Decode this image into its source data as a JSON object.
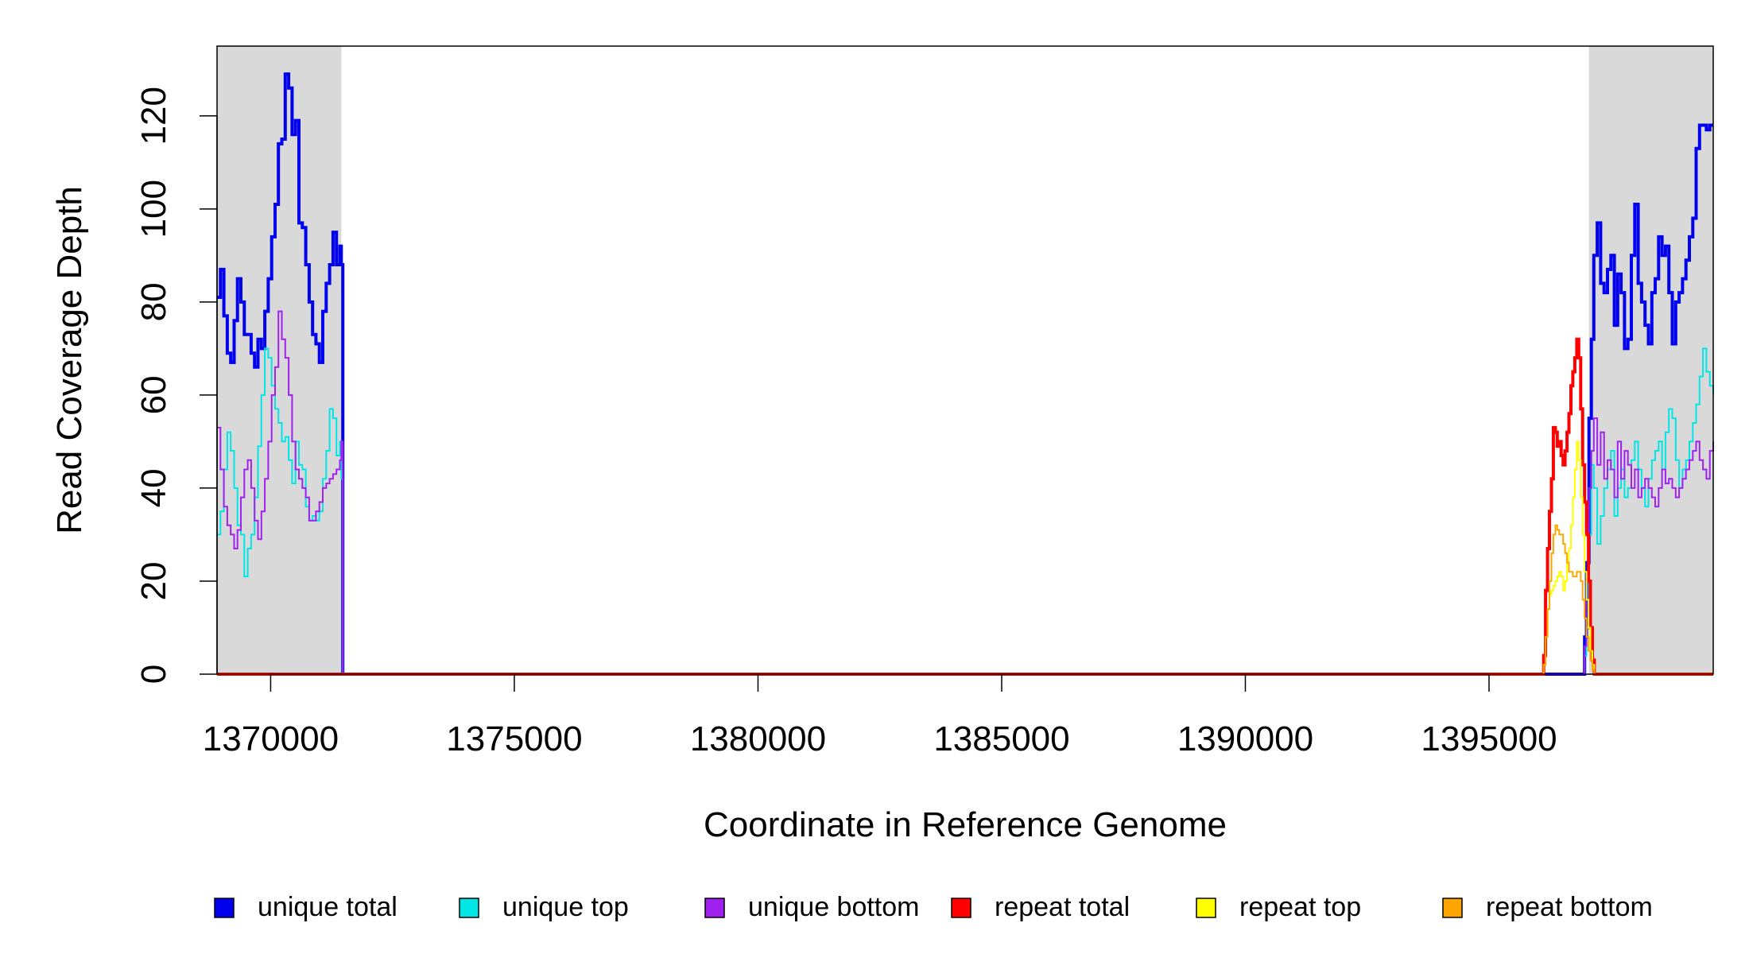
{
  "chart_data": {
    "type": "line",
    "title": "",
    "xlabel": "Coordinate in Reference Genome",
    "ylabel": "Read Coverage Depth",
    "xlim": [
      1368900,
      1399600
    ],
    "ylim": [
      0,
      135
    ],
    "x_ticks": [
      1370000,
      1375000,
      1380000,
      1385000,
      1390000,
      1395000
    ],
    "y_ticks": [
      0,
      20,
      40,
      60,
      80,
      100,
      120
    ],
    "x_tick_labels": [
      "1370000",
      "1375000",
      "1380000",
      "1385000",
      "1390000",
      "1395000"
    ],
    "y_tick_labels": [
      "0",
      "20",
      "40",
      "60",
      "80",
      "100",
      "120"
    ],
    "shaded_regions": [
      {
        "x0": 1368900,
        "x1": 1371450,
        "color": "#d9d9d9"
      },
      {
        "x0": 1397050,
        "x1": 1399600,
        "color": "#d9d9d9"
      }
    ],
    "grid": false,
    "legend_position": "bottom",
    "series": [
      {
        "name": "unique total",
        "color": "#0000ee",
        "width": 4,
        "x": [
          1368900,
          1368970,
          1369040,
          1369110,
          1369180,
          1369250,
          1369320,
          1369390,
          1369460,
          1369530,
          1369600,
          1369670,
          1369740,
          1369810,
          1369880,
          1369950,
          1370020,
          1370090,
          1370160,
          1370230,
          1370300,
          1370370,
          1370440,
          1370510,
          1370580,
          1370650,
          1370720,
          1370790,
          1370860,
          1370930,
          1371000,
          1371070,
          1371140,
          1371210,
          1371280,
          1371350,
          1371420,
          1371450,
          1371480,
          1371500,
          1396900,
          1396960,
          1397000,
          1397050,
          1397100,
          1397150,
          1397220,
          1397290,
          1397360,
          1397430,
          1397500,
          1397570,
          1397640,
          1397710,
          1397780,
          1397850,
          1397920,
          1397990,
          1398060,
          1398130,
          1398200,
          1398270,
          1398340,
          1398410,
          1398480,
          1398550,
          1398620,
          1398690,
          1398760,
          1398830,
          1398900,
          1398970,
          1399040,
          1399110,
          1399180,
          1399250,
          1399320,
          1399390,
          1399460,
          1399530,
          1399600
        ],
        "y": [
          81,
          87,
          77,
          69,
          67,
          76,
          85,
          80,
          73,
          73,
          69,
          66,
          72,
          70,
          78,
          85,
          94,
          101,
          114,
          115,
          129,
          126,
          116,
          119,
          97,
          96,
          88,
          80,
          73,
          71,
          67,
          78,
          84,
          88,
          95,
          88,
          92,
          88,
          0,
          0,
          0,
          8,
          24,
          55,
          72,
          90,
          97,
          84,
          82,
          87,
          90,
          75,
          86,
          82,
          70,
          72,
          90,
          101,
          84,
          80,
          75,
          71,
          82,
          85,
          94,
          90,
          92,
          82,
          71,
          80,
          82,
          85,
          89,
          94,
          98,
          113,
          118,
          118,
          117,
          118,
          118
        ]
      },
      {
        "name": "unique top",
        "color": "#00e5e5",
        "width": 2,
        "x": [
          1368900,
          1368970,
          1369040,
          1369110,
          1369180,
          1369250,
          1369320,
          1369390,
          1369460,
          1369530,
          1369600,
          1369670,
          1369740,
          1369810,
          1369880,
          1369950,
          1370020,
          1370090,
          1370160,
          1370230,
          1370300,
          1370370,
          1370440,
          1370510,
          1370580,
          1370650,
          1370720,
          1370790,
          1370860,
          1370930,
          1371000,
          1371070,
          1371140,
          1371210,
          1371280,
          1371350,
          1371420,
          1371450,
          1371480,
          1371500,
          1396900,
          1396960,
          1397000,
          1397050,
          1397100,
          1397150,
          1397220,
          1397290,
          1397360,
          1397430,
          1397500,
          1397570,
          1397640,
          1397710,
          1397780,
          1397850,
          1397920,
          1397990,
          1398060,
          1398130,
          1398200,
          1398270,
          1398340,
          1398410,
          1398480,
          1398550,
          1398620,
          1398690,
          1398760,
          1398830,
          1398900,
          1398970,
          1399040,
          1399110,
          1399180,
          1399250,
          1399320,
          1399390,
          1399460,
          1399530,
          1399600
        ],
        "y": [
          30,
          35,
          44,
          52,
          48,
          40,
          32,
          30,
          21,
          27,
          30,
          38,
          49,
          60,
          70,
          68,
          62,
          57,
          54,
          50,
          51,
          46,
          41,
          50,
          45,
          44,
          36,
          33,
          34,
          33,
          35,
          42,
          48,
          57,
          55,
          47,
          50,
          42,
          0,
          0,
          0,
          4,
          10,
          30,
          45,
          40,
          28,
          34,
          40,
          44,
          48,
          34,
          40,
          44,
          38,
          40,
          46,
          50,
          44,
          40,
          36,
          42,
          46,
          48,
          50,
          44,
          52,
          57,
          55,
          46,
          40,
          44,
          46,
          50,
          54,
          58,
          64,
          70,
          65,
          62,
          60
        ]
      },
      {
        "name": "unique bottom",
        "color": "#a020f0",
        "width": 2,
        "x": [
          1368900,
          1368970,
          1369040,
          1369110,
          1369180,
          1369250,
          1369320,
          1369390,
          1369460,
          1369530,
          1369600,
          1369670,
          1369740,
          1369810,
          1369880,
          1369950,
          1370020,
          1370090,
          1370160,
          1370230,
          1370300,
          1370370,
          1370440,
          1370510,
          1370580,
          1370650,
          1370720,
          1370790,
          1370860,
          1370930,
          1371000,
          1371070,
          1371140,
          1371210,
          1371280,
          1371350,
          1371420,
          1371450,
          1371480,
          1371500,
          1396900,
          1396960,
          1397000,
          1397050,
          1397100,
          1397150,
          1397220,
          1397290,
          1397360,
          1397430,
          1397500,
          1397570,
          1397640,
          1397710,
          1397780,
          1397850,
          1397920,
          1397990,
          1398060,
          1398130,
          1398200,
          1398270,
          1398340,
          1398410,
          1398480,
          1398550,
          1398620,
          1398690,
          1398760,
          1398830,
          1398900,
          1398970,
          1399040,
          1399110,
          1399180,
          1399250,
          1399320,
          1399390,
          1399460,
          1399530,
          1399600
        ],
        "y": [
          53,
          44,
          36,
          32,
          30,
          27,
          31,
          38,
          44,
          46,
          40,
          33,
          29,
          35,
          42,
          50,
          60,
          66,
          78,
          72,
          68,
          60,
          50,
          44,
          42,
          40,
          38,
          33,
          33,
          35,
          37,
          40,
          41,
          42,
          43,
          44,
          46,
          50,
          0,
          0,
          0,
          6,
          20,
          40,
          48,
          55,
          45,
          52,
          42,
          46,
          44,
          38,
          50,
          42,
          48,
          45,
          40,
          44,
          38,
          40,
          42,
          40,
          38,
          36,
          40,
          44,
          41,
          42,
          40,
          38,
          40,
          42,
          44,
          46,
          48,
          50,
          46,
          44,
          42,
          48,
          50
        ]
      },
      {
        "name": "repeat total",
        "color": "#ff0000",
        "width": 4,
        "x": [
          1368900,
          1371450,
          1371480,
          1396080,
          1396120,
          1396160,
          1396200,
          1396240,
          1396280,
          1396320,
          1396360,
          1396400,
          1396440,
          1396480,
          1396520,
          1396560,
          1396600,
          1396640,
          1396680,
          1396720,
          1396760,
          1396800,
          1396840,
          1396880,
          1396920,
          1396960,
          1397000,
          1397040,
          1397080,
          1397120,
          1397160,
          1397200,
          1399600
        ],
        "y": [
          0,
          0,
          0,
          0,
          4,
          18,
          27,
          35,
          42,
          53,
          52,
          49,
          50,
          47,
          45,
          48,
          52,
          56,
          62,
          65,
          68,
          72,
          68,
          57,
          45,
          37,
          30,
          20,
          10,
          3,
          0,
          0,
          0
        ]
      },
      {
        "name": "repeat top",
        "color": "#ffff00",
        "width": 2,
        "x": [
          1368900,
          1371450,
          1371480,
          1396080,
          1396120,
          1396160,
          1396200,
          1396240,
          1396280,
          1396320,
          1396360,
          1396400,
          1396440,
          1396480,
          1396520,
          1396560,
          1396600,
          1396640,
          1396680,
          1396720,
          1396760,
          1396800,
          1396840,
          1396880,
          1396920,
          1396960,
          1397000,
          1397040,
          1397080,
          1397120,
          1397160,
          1397200,
          1399600
        ],
        "y": [
          0,
          0,
          0,
          0,
          2,
          8,
          14,
          17,
          18,
          19,
          20,
          21,
          22,
          21,
          18,
          20,
          24,
          27,
          32,
          38,
          44,
          50,
          46,
          38,
          30,
          22,
          16,
          10,
          5,
          2,
          0,
          0,
          0
        ]
      },
      {
        "name": "repeat bottom",
        "color": "#ffa500",
        "width": 2,
        "x": [
          1368900,
          1371450,
          1371480,
          1396080,
          1396120,
          1396160,
          1396200,
          1396240,
          1396280,
          1396320,
          1396360,
          1396400,
          1396440,
          1396480,
          1396520,
          1396560,
          1396600,
          1396640,
          1396680,
          1396720,
          1396760,
          1396800,
          1396840,
          1396880,
          1396920,
          1396960,
          1397000,
          1397040,
          1397080,
          1397120,
          1397160,
          1397200,
          1399600
        ],
        "y": [
          0,
          0,
          0,
          0,
          2,
          8,
          14,
          20,
          26,
          30,
          32,
          31,
          30,
          30,
          28,
          26,
          24,
          22,
          22,
          21,
          21,
          22,
          22,
          20,
          16,
          12,
          8,
          5,
          3,
          1,
          0,
          0,
          0
        ]
      }
    ]
  }
}
